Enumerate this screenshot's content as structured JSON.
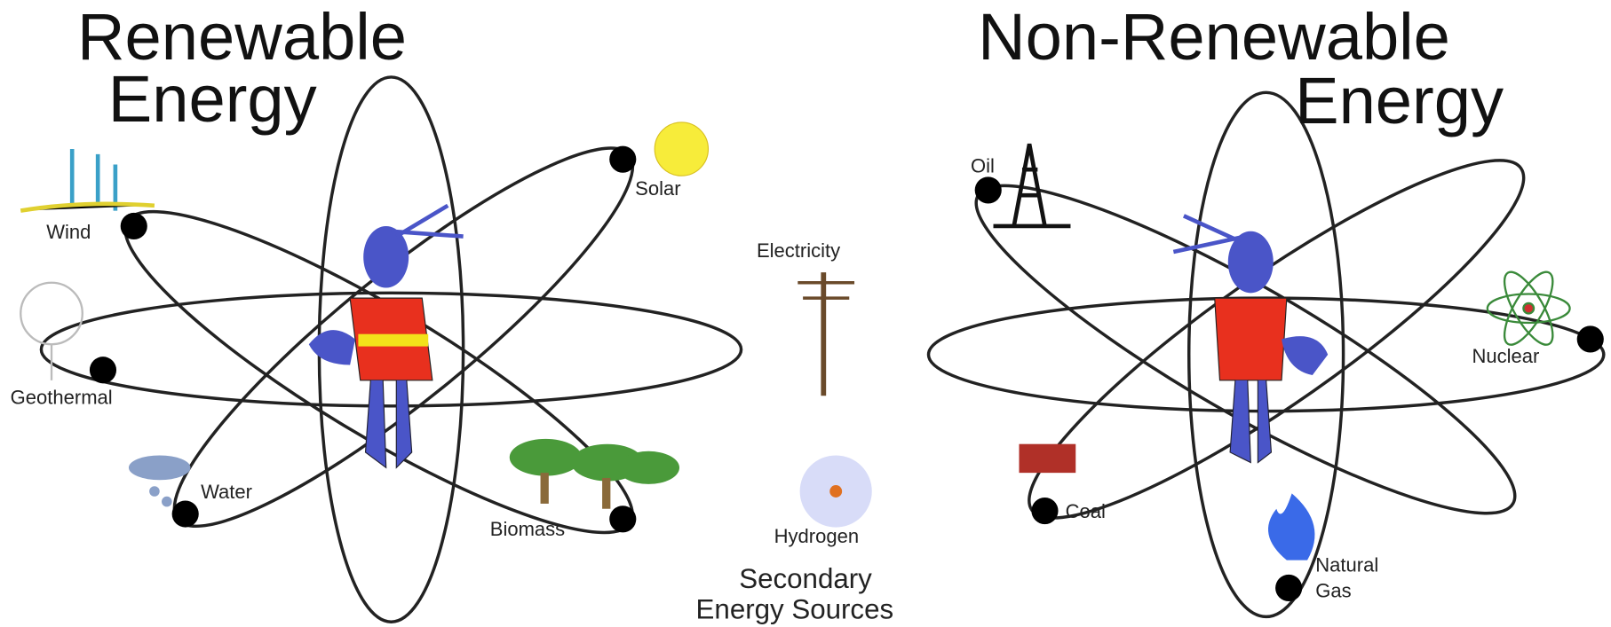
{
  "left": {
    "title": [
      "Renewable",
      "Energy"
    ],
    "sources": [
      "Wind",
      "Solar",
      "Geothermal",
      "Water",
      "Biomass"
    ]
  },
  "center": {
    "items": [
      "Electricity",
      "Hydrogen"
    ],
    "caption": [
      "Secondary",
      "Energy Sources"
    ]
  },
  "right": {
    "title": [
      "Non-Renewable",
      "Energy"
    ],
    "sources": [
      "Oil",
      "Nuclear",
      "Coal",
      [
        "Natural",
        "Gas"
      ]
    ]
  }
}
